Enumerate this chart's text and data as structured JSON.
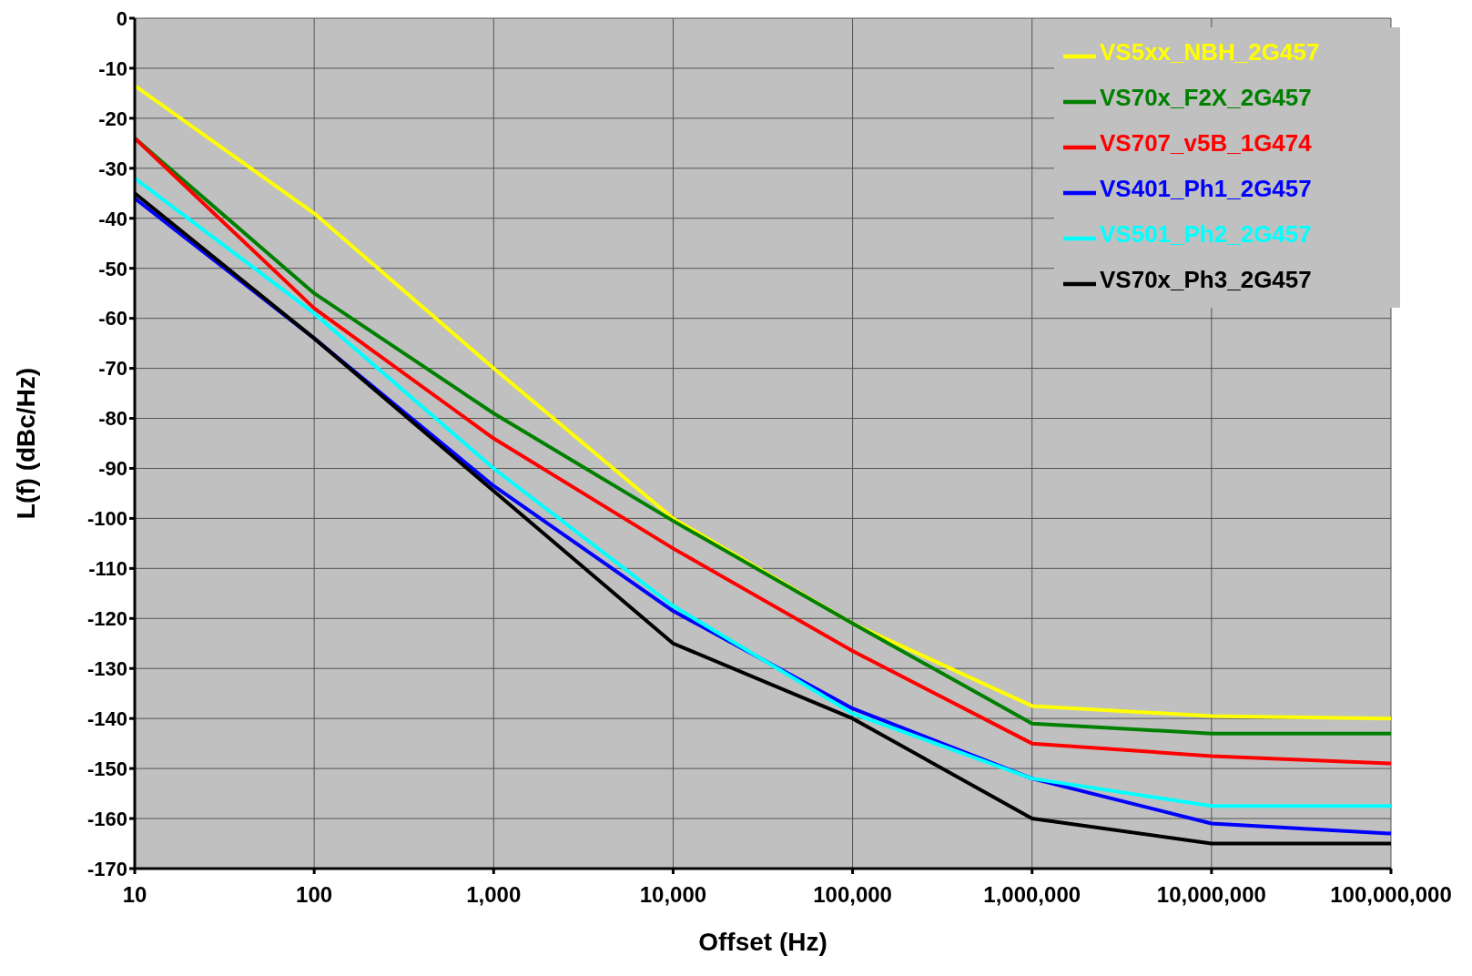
{
  "chart_data": {
    "type": "line",
    "xlabel": "Offset (Hz)",
    "ylabel": "L(f) (dBc/Hz)",
    "x": [
      10,
      100,
      1000,
      10000,
      100000,
      1000000,
      10000000,
      100000000
    ],
    "series": [
      {
        "name": "VS5xx_NBH_2G457",
        "color": "#ffff00",
        "values": [
          -13.5,
          -39,
          -70,
          -100,
          -121,
          -137.5,
          -139.5,
          -140
        ]
      },
      {
        "name": "VS70x_F2X_2G457",
        "color": "#008000",
        "values": [
          -24,
          -55,
          -79,
          -100.5,
          -121,
          -141,
          -143,
          -143
        ]
      },
      {
        "name": "VS707_v5B_1G474",
        "color": "#ff0000",
        "values": [
          -24,
          -58,
          -84,
          -106,
          -126.5,
          -145,
          -147.5,
          -149
        ]
      },
      {
        "name": "VS401_Ph1_2G457",
        "color": "#0000ff",
        "values": [
          -36,
          -64,
          -93.5,
          -118.5,
          -138,
          -152,
          -161,
          -163
        ]
      },
      {
        "name": "VS501_Ph2_2G457",
        "color": "#00ffff",
        "values": [
          -32,
          -59,
          -90,
          -117.5,
          -139,
          -152,
          -157.5,
          -157.5
        ]
      },
      {
        "name": "VS70x_Ph3_2G457",
        "color": "#000000",
        "values": [
          -35,
          -64,
          -94.5,
          -125,
          -140,
          -160,
          -165,
          -165
        ]
      }
    ],
    "log": "x",
    "xlim": [
      10,
      100000000
    ],
    "xticks": [
      {
        "value": 10,
        "label": "10"
      },
      {
        "value": 100,
        "label": "100"
      },
      {
        "value": 1000,
        "label": "1,000"
      },
      {
        "value": 10000,
        "label": "10,000"
      },
      {
        "value": 100000,
        "label": "100,000"
      },
      {
        "value": 1000000,
        "label": "1,000,000"
      },
      {
        "value": 10000000,
        "label": "10,000,000"
      },
      {
        "value": 100000000,
        "label": "100,000,000"
      }
    ],
    "ylim": [
      -170,
      0
    ],
    "yticks": [
      -170,
      -160,
      -150,
      -140,
      -130,
      -120,
      -110,
      -100,
      -90,
      -80,
      -70,
      -60,
      -50,
      -40,
      -30,
      -20,
      -10,
      0
    ],
    "grid": true,
    "legend": "top right",
    "marker": "none",
    "line_style": "solid"
  }
}
